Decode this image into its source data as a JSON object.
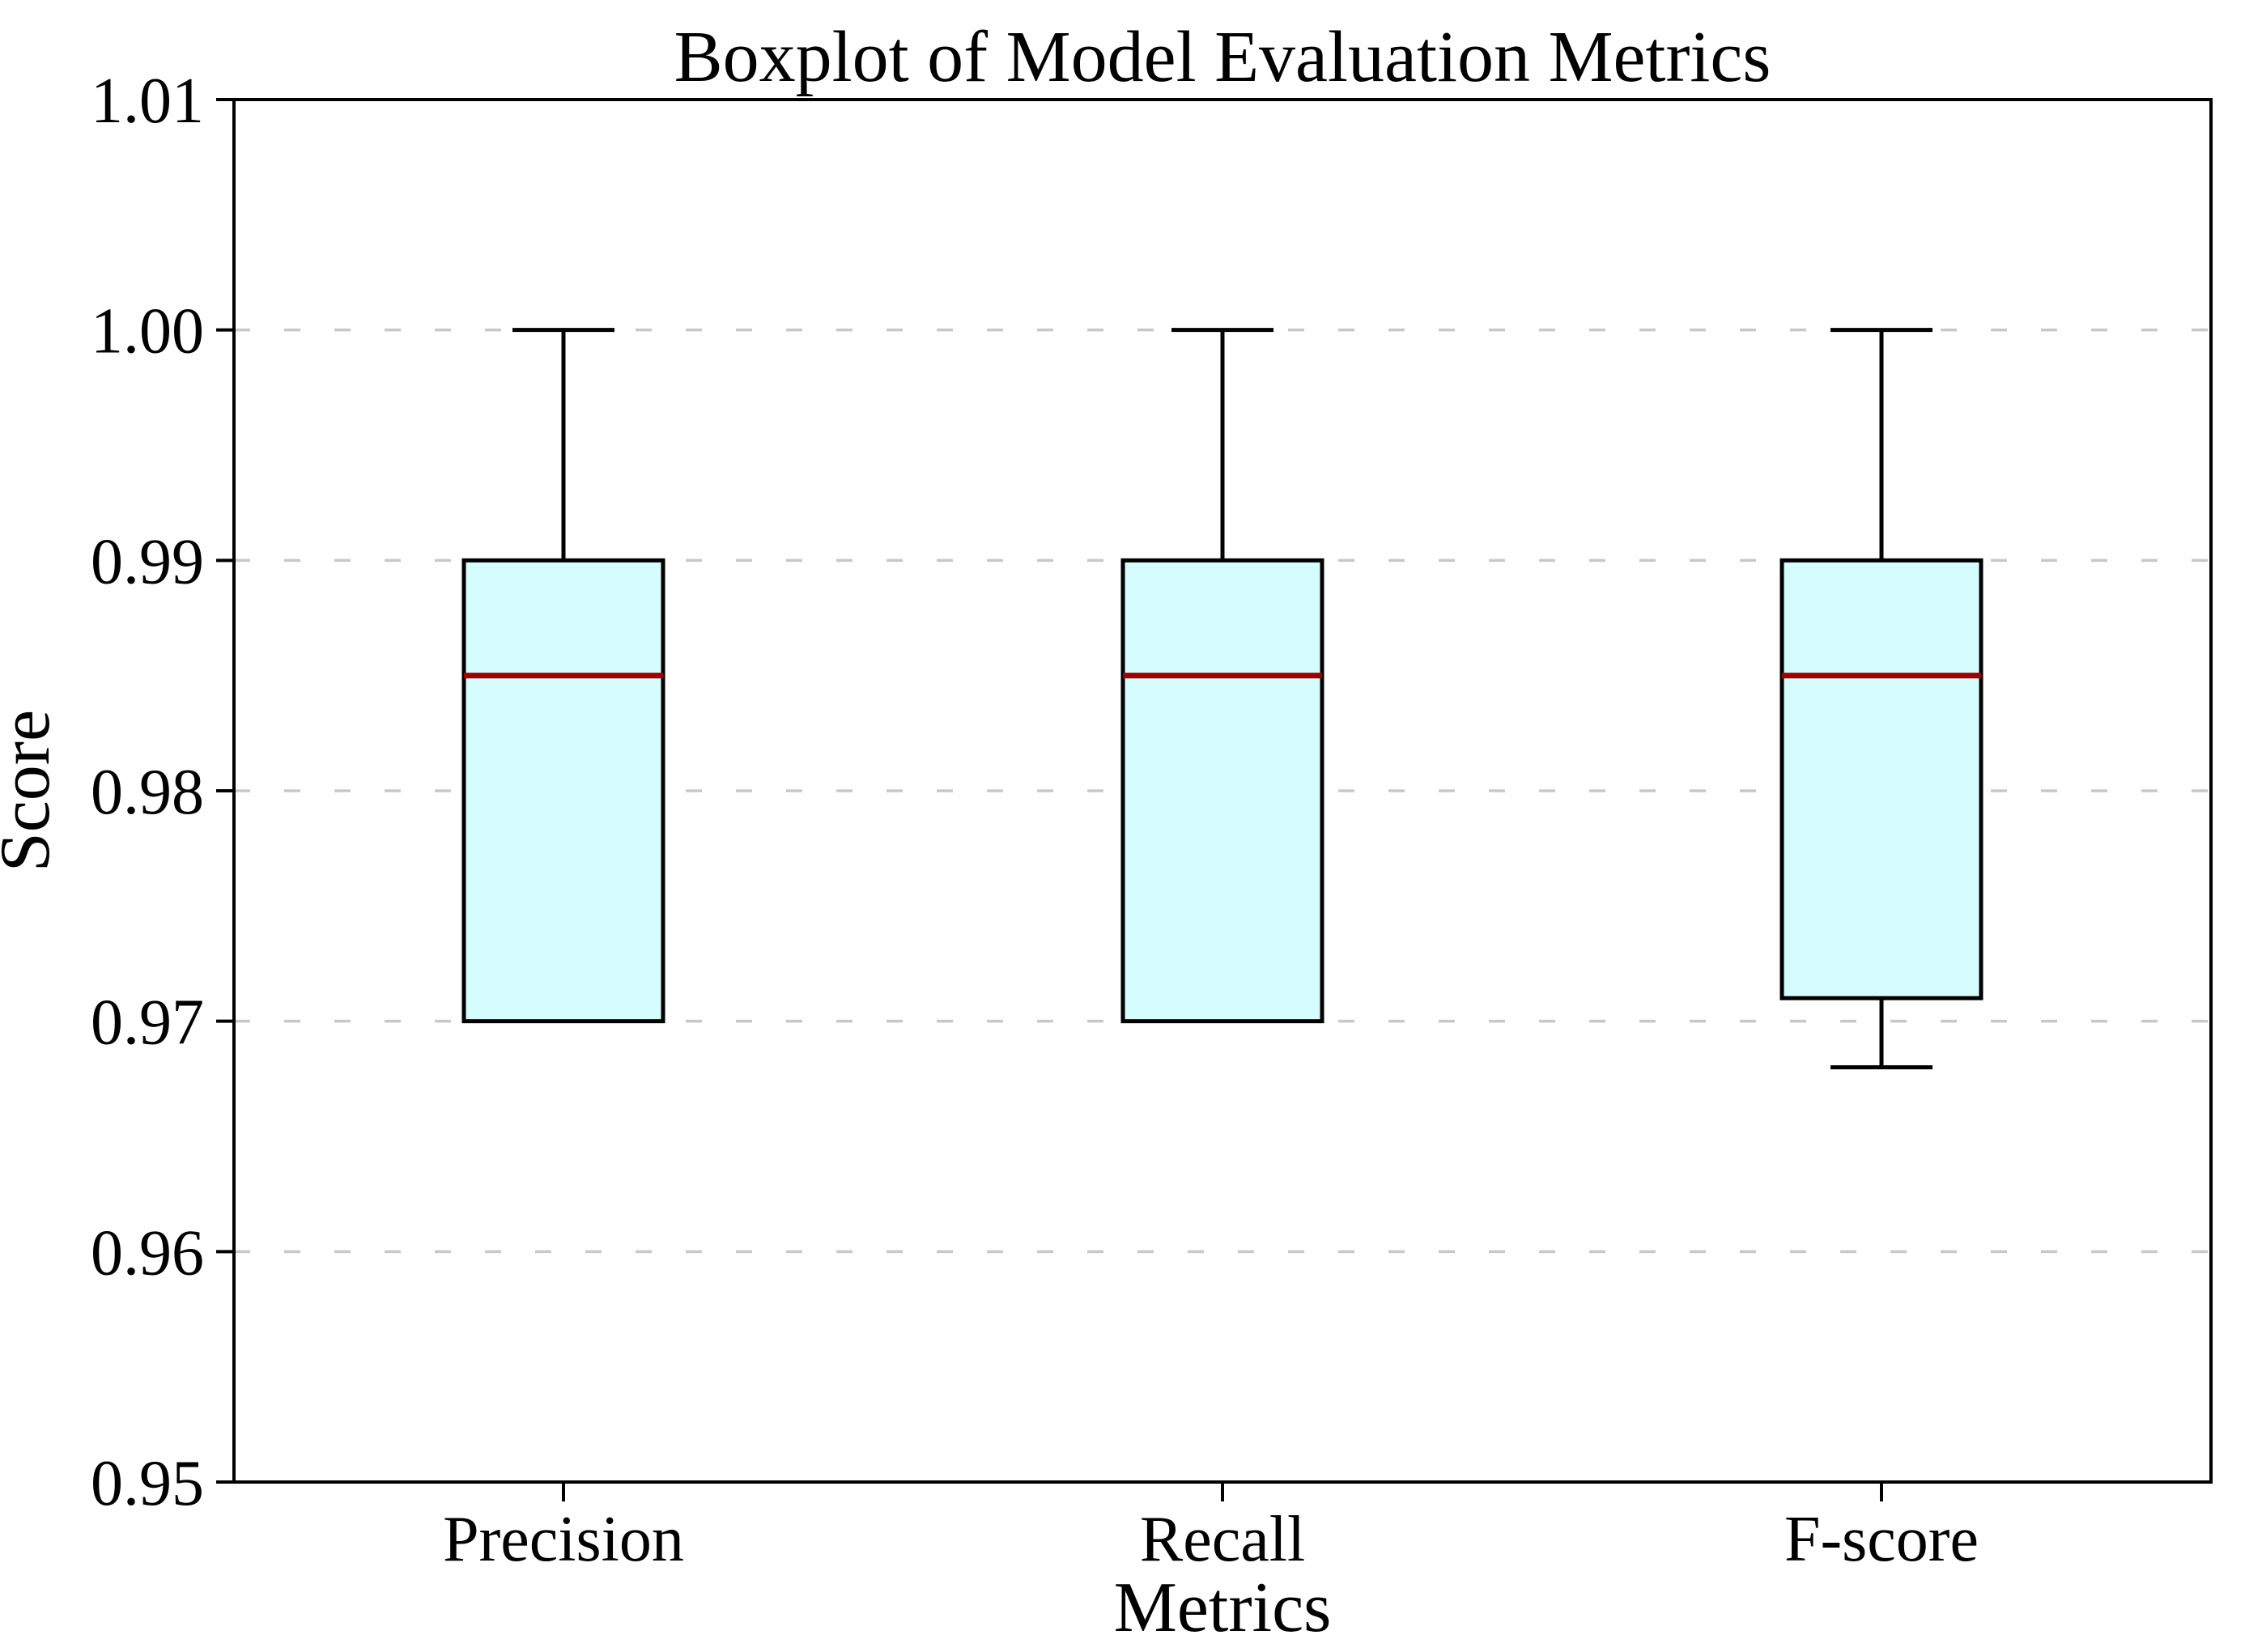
{
  "chart_data": {
    "type": "boxplot",
    "title": "Boxplot of Model Evaluation Metrics",
    "xlabel": "Metrics",
    "ylabel": "Score",
    "categories": [
      "Precision",
      "Recall",
      "F-score"
    ],
    "series": [
      {
        "name": "Precision",
        "whisker_low": 0.97,
        "q1": 0.97,
        "median": 0.985,
        "q3": 0.99,
        "whisker_high": 1.0
      },
      {
        "name": "Recall",
        "whisker_low": 0.97,
        "q1": 0.97,
        "median": 0.985,
        "q3": 0.99,
        "whisker_high": 1.0
      },
      {
        "name": "F-score",
        "whisker_low": 0.968,
        "q1": 0.971,
        "median": 0.985,
        "q3": 0.99,
        "whisker_high": 1.0
      }
    ],
    "ylim": [
      0.95,
      1.01
    ],
    "yticks": [
      0.95,
      0.96,
      0.97,
      0.98,
      0.99,
      1.0,
      1.01
    ],
    "ytick_labels": [
      "0.95",
      "0.96",
      "0.97",
      "0.98",
      "0.99",
      "1.00",
      "1.01"
    ],
    "grid": "horizontal-dashed",
    "legend": "none",
    "outliers": [],
    "colors": {
      "box_fill": "#d6fdfd",
      "box_edge": "#000000",
      "median": "#a00000",
      "grid": "#c8c8c8",
      "axis": "#000000",
      "text": "#000000",
      "background": "#ffffff"
    }
  }
}
